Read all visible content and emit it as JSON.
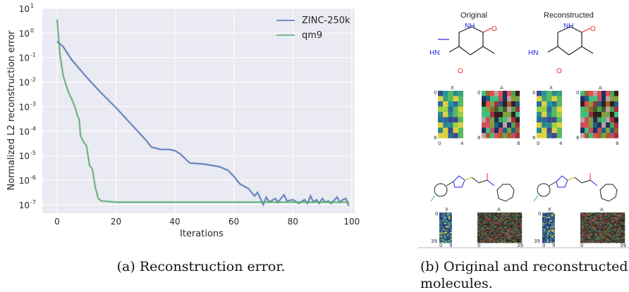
{
  "chart_data": [
    {
      "type": "line",
      "title": "",
      "xlabel": "Iterations",
      "ylabel": "Normalized L2 reconstruction error",
      "xlim": [
        -5,
        101
      ],
      "ylim_log10": [
        -7.35,
        1
      ],
      "yscale": "log",
      "xticks": [
        0,
        20,
        40,
        60,
        80,
        100
      ],
      "xtick_labels": [
        "0",
        "20",
        "40",
        "60",
        "80",
        "100"
      ],
      "yticks_exp": [
        1,
        0,
        -1,
        -2,
        -3,
        -4,
        -5,
        -6,
        -7
      ],
      "ytick_labels": [
        "10",
        "10",
        "10",
        "10",
        "10",
        "10",
        "10",
        "10",
        "10"
      ],
      "ytick_exp_labels": [
        "1",
        "0",
        "-1",
        "-2",
        "-3",
        "-4",
        "-5",
        "-6",
        "-7"
      ],
      "grid": true,
      "legend_position": "top-right",
      "series": [
        {
          "name": "ZINC-250k",
          "color": "#4c72b0",
          "x": [
            0,
            2,
            5,
            10,
            15,
            20,
            25,
            30,
            32,
            35,
            38,
            40,
            42,
            45,
            50,
            55,
            58,
            60,
            62,
            65,
            67,
            68,
            70,
            71,
            72,
            74,
            75,
            77,
            78,
            80,
            82,
            84,
            85,
            86,
            87,
            88,
            89,
            90,
            91,
            92,
            93,
            95,
            96,
            97,
            98,
            99
          ],
          "log10_y": [
            -0.35,
            -0.55,
            -1.1,
            -1.8,
            -2.45,
            -3.05,
            -3.7,
            -4.35,
            -4.65,
            -4.75,
            -4.75,
            -4.8,
            -4.95,
            -5.3,
            -5.35,
            -5.45,
            -5.6,
            -5.85,
            -6.15,
            -6.35,
            -6.65,
            -6.5,
            -7.0,
            -6.7,
            -6.9,
            -6.75,
            -6.9,
            -6.6,
            -6.85,
            -6.8,
            -6.95,
            -6.8,
            -6.95,
            -6.65,
            -6.9,
            -6.8,
            -6.95,
            -6.75,
            -6.9,
            -6.85,
            -6.95,
            -6.7,
            -6.9,
            -6.8,
            -6.75,
            -7.05
          ]
        },
        {
          "name": "qm9",
          "color": "#55a868",
          "x": [
            0,
            1,
            2,
            3,
            4,
            5,
            6,
            7,
            7.5,
            8,
            9,
            10,
            11,
            12,
            13,
            14,
            15,
            20,
            30,
            40,
            50,
            60,
            70,
            80,
            90,
            99
          ],
          "log10_y": [
            0.55,
            -0.9,
            -1.7,
            -2.1,
            -2.45,
            -2.7,
            -3.0,
            -3.4,
            -3.5,
            -4.2,
            -4.45,
            -4.6,
            -5.4,
            -5.55,
            -6.3,
            -6.75,
            -6.85,
            -6.9,
            -6.9,
            -6.9,
            -6.9,
            -6.9,
            -6.9,
            -6.9,
            -6.9,
            -6.9
          ]
        }
      ]
    },
    {
      "type": "heatmap",
      "titles": [
        "Original",
        "Reconstructed"
      ],
      "molecule_labels": {
        "hn": "HN",
        "nh": "NH",
        "o_ring": "O",
        "o_carbonyl": "O"
      },
      "matrix_labels": [
        "X",
        "A"
      ],
      "small_grid_ticks": {
        "x_left": "0",
        "x_mid": "4",
        "a_mid": "8",
        "rows_zero": "0",
        "rows_eight": "8"
      },
      "large_grid_ticks": {
        "zero": "0",
        "nine": "9",
        "thirty_nine": "39"
      }
    }
  ],
  "captions": {
    "a": "(a) Reconstruction error.",
    "b": "(b) Original and reconstructed molecules."
  }
}
